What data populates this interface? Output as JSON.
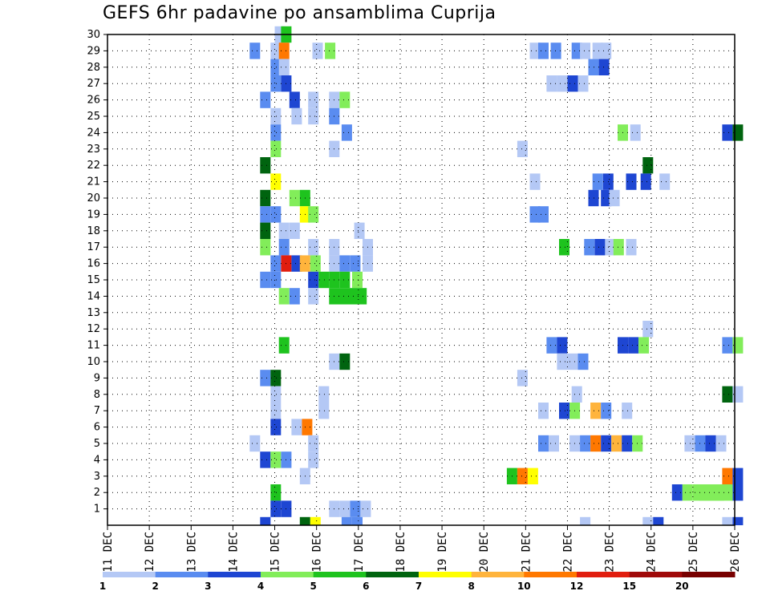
{
  "chart_data": {
    "type": "heatmap",
    "title": "GEFS 6hr padavine po ansamblima Cuprija",
    "x_tick_labels": [
      "11 DEC",
      "12 DEC",
      "13 DEC",
      "14 DEC",
      "15 DEC",
      "16 DEC",
      "17 DEC",
      "18 DEC",
      "19 DEC",
      "20 DEC",
      "21 DEC",
      "22 DEC",
      "23 DEC",
      "24 DEC",
      "25 DEC",
      "26 DEC"
    ],
    "y_tick_labels": [
      "1",
      "2",
      "3",
      "4",
      "5",
      "6",
      "7",
      "8",
      "9",
      "10",
      "11",
      "12",
      "13",
      "14",
      "15",
      "16",
      "17",
      "18",
      "19",
      "20",
      "21",
      "22",
      "23",
      "24",
      "25",
      "26",
      "27",
      "28",
      "29",
      "30"
    ],
    "xlim": [
      0,
      15
    ],
    "ylim": [
      0,
      30
    ],
    "grid": true,
    "colorbar": {
      "labels": [
        "1",
        "2",
        "3",
        "4",
        "5",
        "6",
        "7",
        "8",
        "10",
        "12",
        "15",
        "20"
      ],
      "colors": [
        "#b4c8f5",
        "#5a8cf0",
        "#1e46d2",
        "#82ed5a",
        "#1ec31e",
        "#00640f",
        "#ffff00",
        "#ffb43c",
        "#ff7800",
        "#e11e0f",
        "#a00a0a",
        "#780000"
      ]
    },
    "cells": [
      [
        0,
        15.0,
        0.5,
        3,
        30
      ],
      [
        1,
        4.25,
        0.5,
        8,
        29
      ],
      [
        2,
        15.1,
        0.5,
        1,
        31
      ],
      [
        0,
        29.2,
        0.5,
        1,
        30
      ],
      [
        1,
        4.0,
        0.5,
        2,
        29
      ],
      [
        0,
        29.2,
        0.5,
        1,
        30
      ],
      [
        2,
        12.5,
        0.5,
        3,
        31
      ],
      [
        3,
        14.4,
        0.5,
        2,
        30
      ],
      [
        0,
        26.5,
        0.5,
        3,
        30
      ],
      [
        4,
        28.1,
        0.5,
        6,
        30
      ],
      [
        0,
        27.5,
        0.5,
        1,
        29
      ],
      [
        9,
        11.2,
        0.5,
        1,
        30
      ],
      [
        0,
        17.5,
        0.5,
        2,
        30
      ],
      [
        0,
        19.3,
        0.5,
        1,
        29
      ],
      [
        3,
        16.3,
        0.5,
        5,
        30
      ],
      [
        3,
        17.3,
        0.5,
        6,
        29
      ],
      [
        2,
        13.3,
        0.5,
        10,
        30
      ],
      [
        3,
        15.5,
        0.5,
        7,
        30
      ],
      [
        4,
        17.5,
        0.5,
        4,
        30
      ],
      [
        4,
        16.0,
        0.5,
        3,
        30
      ],
      [
        4,
        22.5,
        0.5,
        5,
        31
      ],
      [
        4,
        24.5,
        0.5,
        8,
        30
      ],
      [
        4,
        18.5,
        0.5,
        1,
        28
      ],
      [
        5,
        21.0,
        0.5,
        3,
        31
      ],
      [
        4,
        25.5,
        0.5,
        5,
        31
      ]
    ]
  }
}
